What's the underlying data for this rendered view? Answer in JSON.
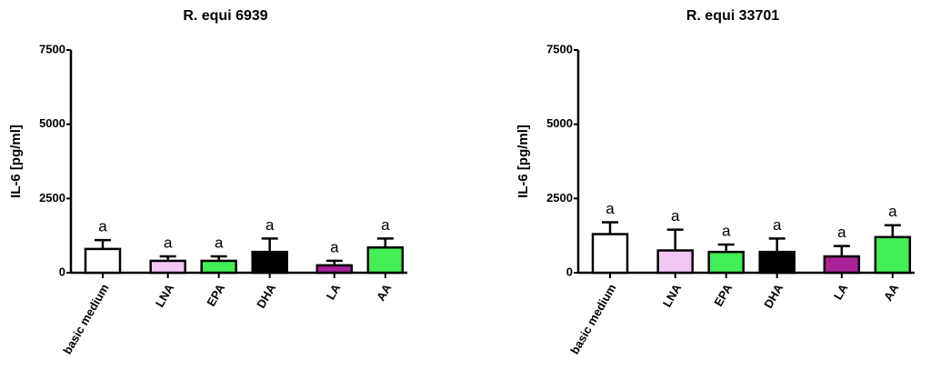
{
  "chart_data": [
    {
      "type": "bar",
      "title": "R. equi 6939",
      "y_label": "IL-6 [pg/ml]",
      "categories": [
        "basic medium",
        "LNA",
        "EPA",
        "DHA",
        "LA",
        "AA"
      ],
      "values": [
        800,
        400,
        400,
        700,
        250,
        850
      ],
      "errors": [
        300,
        150,
        150,
        450,
        150,
        300
      ],
      "colors": [
        "#ffffff",
        "#f2c8f2",
        "#44ee55",
        "#000000",
        "#aa2299",
        "#44ee55"
      ],
      "annotations": [
        "a",
        "a",
        "a",
        "a",
        "a",
        "a"
      ],
      "ylim": [
        0,
        7500
      ],
      "yticks": [
        0,
        2500,
        5000,
        7500
      ]
    },
    {
      "type": "bar",
      "title": "R. equi 33701",
      "y_label": "IL-6 [pg/ml]",
      "categories": [
        "basic medium",
        "LNA",
        "EPA",
        "DHA",
        "LA",
        "AA"
      ],
      "values": [
        1300,
        750,
        700,
        700,
        550,
        1200
      ],
      "errors": [
        400,
        700,
        250,
        450,
        350,
        400
      ],
      "colors": [
        "#ffffff",
        "#f2c8f2",
        "#44ee55",
        "#000000",
        "#aa2299",
        "#44ee55"
      ],
      "annotations": [
        "a",
        "a",
        "a",
        "a",
        "a",
        "a"
      ],
      "ylim": [
        0,
        7500
      ],
      "yticks": [
        0,
        2500,
        5000,
        7500
      ]
    }
  ]
}
